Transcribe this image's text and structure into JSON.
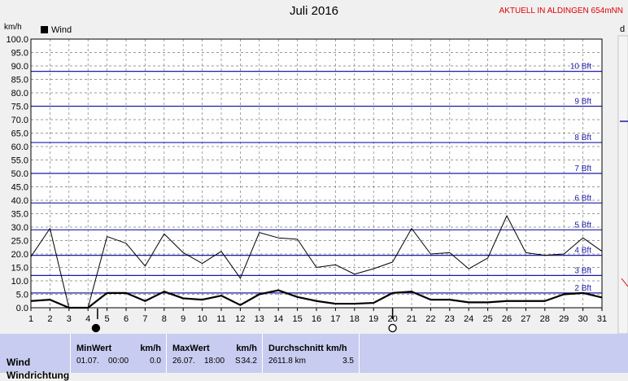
{
  "header": {
    "title": "Juli 2016",
    "station": "AKTUELL IN ALDINGEN 654mNN",
    "unit": "km/h",
    "edge_letter": "d"
  },
  "colors": {
    "wind_line": "#000000",
    "beaufort_lines": "#1c1ca8",
    "grid": "#7a7a7a",
    "plot_bg": "#ffffff",
    "panel_bg": "#c8ccf0",
    "station_text": "#e00000"
  },
  "chart_data": {
    "type": "line",
    "title": "Juli 2016",
    "ylabel": "km/h",
    "xlabel": "",
    "ylim": [
      0,
      100
    ],
    "yticks": [
      "0.0",
      "5.0",
      "10.0",
      "15.0",
      "20.0",
      "25.0",
      "30.0",
      "35.0",
      "40.0",
      "45.0",
      "50.0",
      "55.0",
      "60.0",
      "65.0",
      "70.0",
      "75.0",
      "80.0",
      "85.0",
      "90.0",
      "95.0",
      "100.0"
    ],
    "x": [
      1,
      2,
      3,
      4,
      5,
      6,
      7,
      8,
      9,
      10,
      11,
      12,
      13,
      14,
      15,
      16,
      17,
      18,
      19,
      20,
      21,
      22,
      23,
      24,
      25,
      26,
      27,
      28,
      29,
      30,
      31
    ],
    "grid": true,
    "legend": "top-left",
    "series": [
      {
        "name": "Wind",
        "role": "mean",
        "values": [
          2.5,
          3.0,
          0,
          0,
          5.5,
          5.5,
          2.5,
          6.0,
          3.5,
          3.0,
          4.5,
          1.0,
          5.0,
          6.5,
          4.0,
          2.5,
          1.5,
          1.5,
          1.8,
          5.5,
          6.0,
          3.0,
          3.0,
          2.0,
          2.0,
          2.5,
          2.5,
          2.5,
          5.0,
          5.5,
          3.8
        ]
      },
      {
        "role": "gust",
        "values": [
          19,
          29.5,
          0,
          0,
          26.5,
          24,
          15.5,
          27.5,
          20.5,
          16.5,
          21,
          11,
          28,
          26,
          25.5,
          15,
          16,
          12.5,
          14.5,
          17,
          29.5,
          20,
          20.5,
          14.5,
          18.5,
          34.2,
          20.5,
          19.5,
          20,
          26,
          21
        ]
      }
    ],
    "beaufort": [
      {
        "label": "2 Bft",
        "value": 5.5
      },
      {
        "label": "3 Bft",
        "value": 12
      },
      {
        "label": "4 Bft",
        "value": 19.5
      },
      {
        "label": "5 Bft",
        "value": 29
      },
      {
        "label": "6 Bft",
        "value": 39
      },
      {
        "label": "7 Bft",
        "value": 50
      },
      {
        "label": "8 Bft",
        "value": 61.5
      },
      {
        "label": "9 Bft",
        "value": 75
      },
      {
        "label": "10 Bft",
        "value": 88
      }
    ],
    "moon_markers": [
      {
        "day": 4.5,
        "phase": "new"
      },
      {
        "day": 20,
        "phase": "full"
      }
    ]
  },
  "stats": {
    "row_label": "Wind",
    "row_label_2": "Windrichtung",
    "min": {
      "header": "MinWert",
      "unit": "km/h",
      "date": "01.07.",
      "time": "00:00",
      "value": "0.0"
    },
    "max": {
      "header": "MaxWert",
      "unit": "km/h",
      "date": "26.07.",
      "time": "18:00",
      "dir": "S",
      "value": "34.2"
    },
    "avg": {
      "header": "Durchschnitt km/h",
      "distance": "2611.8 km",
      "value": "3.5"
    }
  }
}
